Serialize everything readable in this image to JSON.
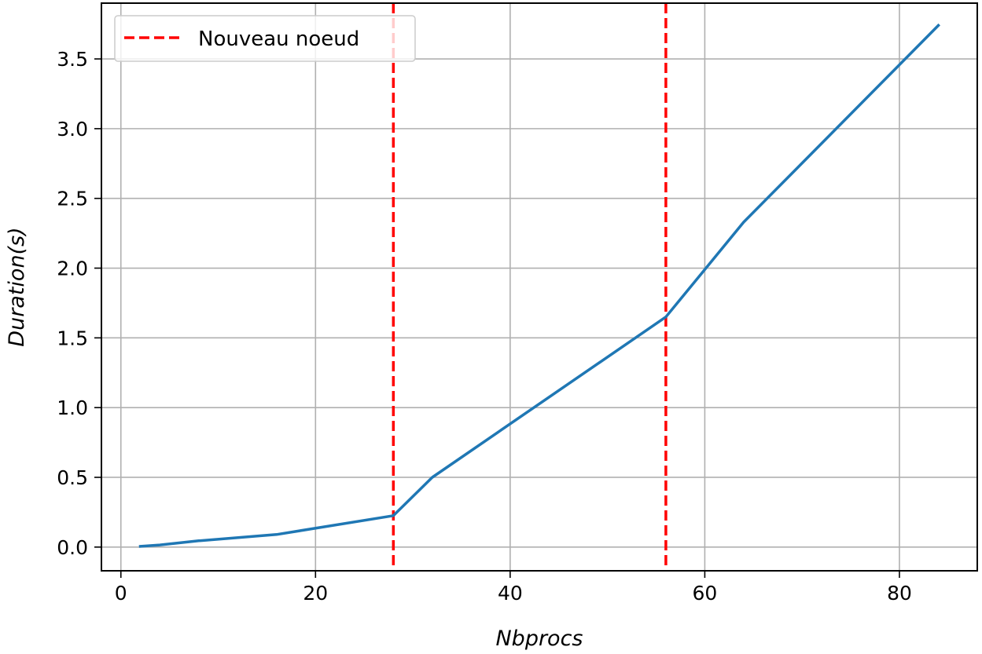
{
  "chart_data": {
    "type": "line",
    "xlabel": "Nbprocs",
    "ylabel": "Duration(s)",
    "xlim": [
      -2,
      88
    ],
    "ylim": [
      -0.17,
      3.9
    ],
    "xticks": [
      0,
      20,
      40,
      60,
      80
    ],
    "yticks": [
      0.0,
      0.5,
      1.0,
      1.5,
      2.0,
      2.5,
      3.0,
      3.5
    ],
    "xtick_labels": [
      "0",
      "20",
      "40",
      "60",
      "80"
    ],
    "ytick_labels": [
      "0.0",
      "0.5",
      "1.0",
      "1.5",
      "2.0",
      "2.5",
      "3.0",
      "3.5"
    ],
    "grid": true,
    "legend_position": "top-left",
    "series": [
      {
        "color": "#1f77b4",
        "x": [
          2,
          4,
          8,
          16,
          28,
          32,
          56,
          64,
          84
        ],
        "y": [
          0.005,
          0.015,
          0.045,
          0.09,
          0.225,
          0.5,
          1.65,
          2.33,
          3.74
        ]
      }
    ],
    "vlines": [
      {
        "x": 28,
        "name": "Nouveau noeud",
        "color": "#ff0000",
        "style": "dashed"
      },
      {
        "x": 56,
        "color": "#ff0000",
        "style": "dashed"
      }
    ],
    "legend": [
      {
        "label": "Nouveau noeud",
        "color": "#ff0000",
        "style": "dashed"
      }
    ]
  }
}
